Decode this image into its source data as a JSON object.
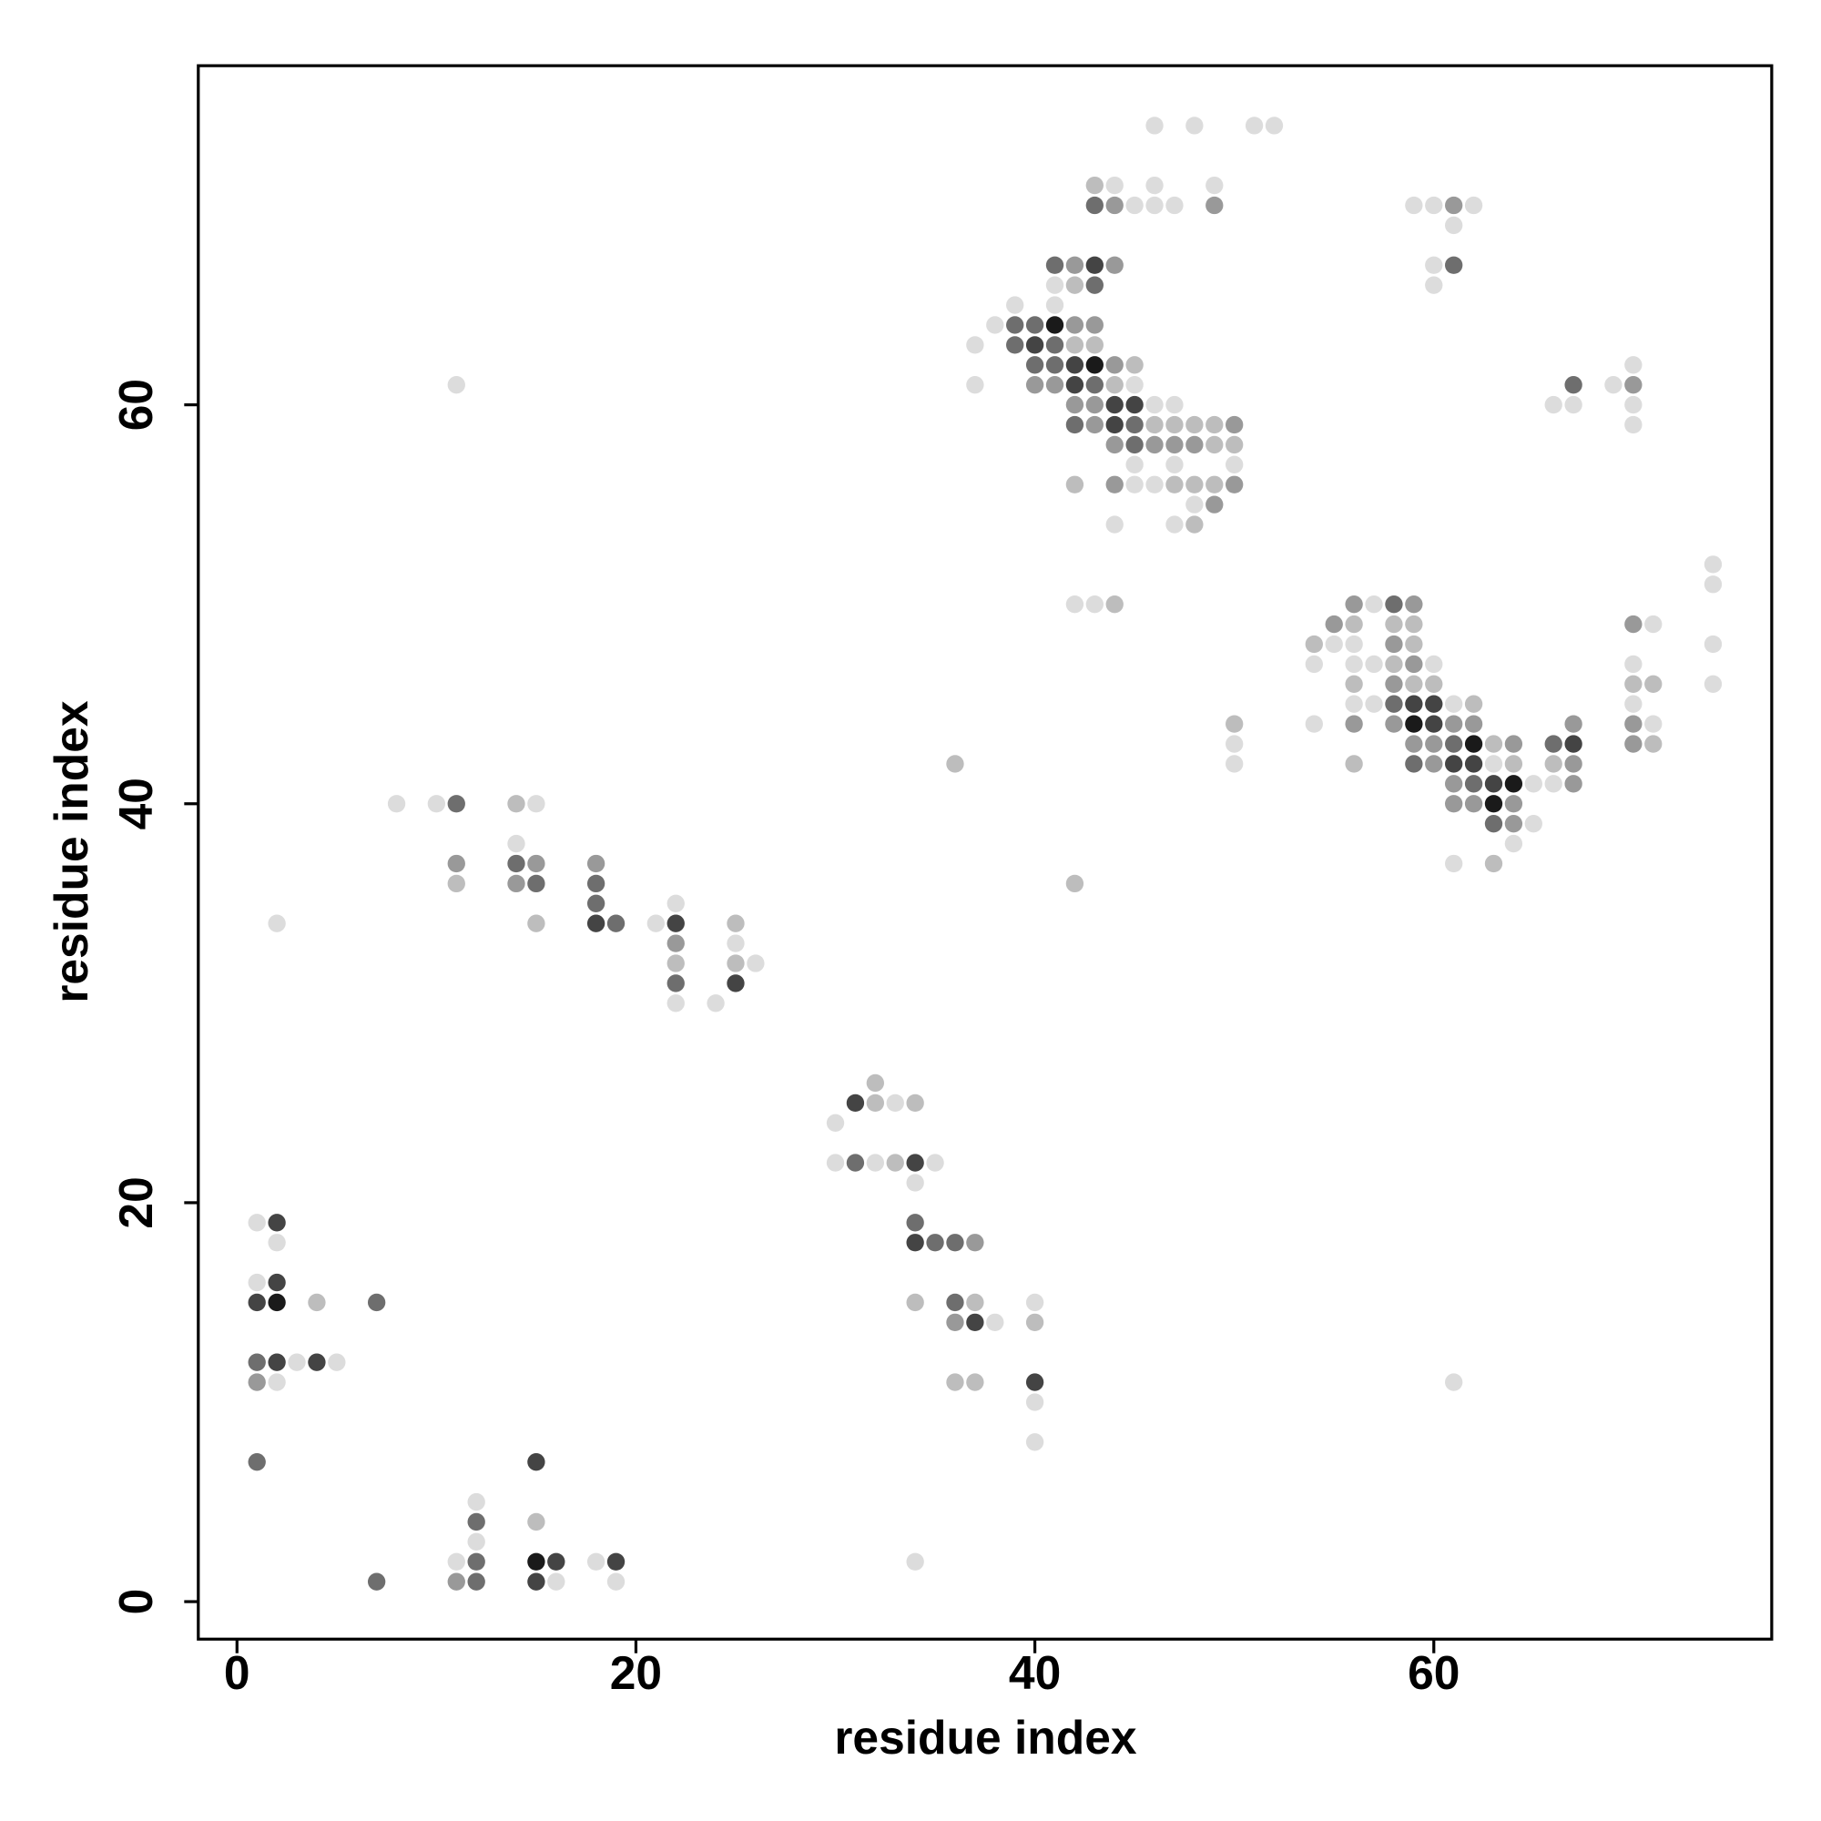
{
  "chart_data": {
    "type": "scatter",
    "xlabel": "residue index",
    "ylabel": "residue index",
    "xlim": [
      -1.94,
      76.94
    ],
    "ylim": [
      -1.88,
      77
    ],
    "xticks": [
      0,
      20,
      40,
      60
    ],
    "yticks": [
      0,
      20,
      40,
      60
    ],
    "series": [
      {
        "color": "#dcdcdc",
        "x": [
          46,
          48,
          51,
          52,
          44,
          46,
          49,
          45,
          46,
          47,
          59,
          60,
          62,
          61,
          60,
          41,
          60,
          41,
          39,
          38,
          37,
          37,
          45,
          11,
          69,
          46,
          47,
          66,
          67,
          70,
          70,
          70,
          45,
          47,
          50,
          45,
          46,
          48,
          44,
          47,
          42,
          43,
          74,
          74,
          57,
          71,
          55,
          56,
          74,
          54,
          56,
          57,
          60,
          70,
          74,
          56,
          57,
          61,
          70,
          54,
          71,
          50,
          50,
          63,
          65,
          66,
          8,
          10,
          15,
          65,
          14,
          64,
          61,
          22,
          2,
          21,
          25,
          26,
          22,
          24,
          33,
          30,
          30,
          32,
          35,
          34,
          1,
          2,
          1,
          40,
          38,
          3,
          5,
          2,
          40,
          40,
          12,
          12,
          11,
          18,
          34,
          16,
          19,
          61
        ],
        "y": [
          74,
          74,
          74,
          74,
          71,
          71,
          71,
          70,
          70,
          70,
          70,
          70,
          70,
          69,
          67,
          66,
          66,
          65,
          65,
          64,
          63,
          61,
          61,
          61,
          61,
          60,
          60,
          60,
          60,
          60,
          62,
          59,
          57,
          57,
          57,
          56,
          56,
          55,
          54,
          54,
          50,
          50,
          52,
          51,
          50,
          49,
          48,
          48,
          48,
          47,
          47,
          47,
          47,
          47,
          46,
          45,
          45,
          45,
          45,
          44,
          44,
          43,
          42,
          42,
          41,
          41,
          40,
          40,
          40,
          39,
          38,
          38,
          37,
          35,
          34,
          34,
          33,
          32,
          30,
          30,
          25,
          24,
          22,
          22,
          22,
          21,
          19,
          18,
          16,
          15,
          14,
          12,
          12,
          11,
          10,
          8,
          5,
          3,
          2,
          2,
          2,
          1,
          1,
          11
        ]
      },
      {
        "color": "#bdbdbd",
        "x": [
          43,
          42,
          42,
          43,
          45,
          44,
          46,
          47,
          48,
          49,
          49,
          50,
          42,
          47,
          48,
          49,
          48,
          44,
          56,
          58,
          59,
          54,
          59,
          58,
          56,
          59,
          60,
          70,
          71,
          62,
          50,
          63,
          71,
          36,
          56,
          64,
          66,
          14,
          63,
          11,
          42,
          15,
          25,
          22,
          25,
          32,
          32,
          34,
          33,
          4,
          34,
          37,
          40,
          36,
          37,
          15
        ],
        "y": [
          71,
          66,
          63,
          63,
          62,
          61,
          59,
          59,
          59,
          59,
          58,
          58,
          56,
          56,
          56,
          56,
          54,
          50,
          49,
          49,
          49,
          48,
          48,
          47,
          46,
          46,
          46,
          46,
          46,
          45,
          44,
          43,
          43,
          42,
          42,
          42,
          42,
          40,
          37,
          36,
          36,
          34,
          34,
          32,
          32,
          26,
          25,
          25,
          22,
          15,
          15,
          15,
          14,
          11,
          11,
          4
        ]
      },
      {
        "color": "#999999",
        "x": [
          44,
          49,
          61,
          42,
          44,
          42,
          43,
          44,
          40,
          41,
          42,
          43,
          43,
          50,
          44,
          46,
          47,
          48,
          44,
          50,
          49,
          56,
          59,
          55,
          70,
          58,
          59,
          58,
          56,
          58,
          61,
          62,
          67,
          70,
          59,
          60,
          64,
          70,
          60,
          67,
          61,
          67,
          61,
          62,
          64,
          64,
          11,
          15,
          18,
          14,
          22,
          37,
          36,
          1,
          11,
          70
        ],
        "y": [
          70,
          70,
          70,
          67,
          67,
          64,
          64,
          62,
          61,
          61,
          60,
          60,
          59,
          59,
          58,
          58,
          58,
          58,
          56,
          56,
          55,
          50,
          50,
          49,
          49,
          48,
          47,
          46,
          44,
          44,
          44,
          44,
          44,
          44,
          43,
          43,
          43,
          43,
          42,
          42,
          41,
          41,
          40,
          40,
          40,
          39,
          37,
          37,
          37,
          36,
          33,
          18,
          14,
          11,
          1,
          61
        ]
      },
      {
        "color": "#6e6e6e",
        "x": [
          43,
          41,
          61,
          43,
          39,
          40,
          39,
          41,
          40,
          41,
          43,
          67,
          42,
          45,
          45,
          58,
          58,
          59,
          61,
          66,
          62,
          63,
          11,
          14,
          15,
          18,
          18,
          19,
          22,
          31,
          34,
          35,
          36,
          7,
          36,
          1,
          1,
          12,
          12,
          7,
          12
        ],
        "y": [
          70,
          67,
          67,
          66,
          64,
          64,
          63,
          63,
          62,
          62,
          61,
          61,
          59,
          59,
          58,
          50,
          45,
          42,
          43,
          43,
          41,
          39,
          40,
          37,
          36,
          36,
          35,
          34,
          31,
          22,
          19,
          18,
          18,
          15,
          15,
          12,
          7,
          4,
          2,
          1,
          1
        ]
      },
      {
        "color": "#444444",
        "x": [
          43,
          40,
          42,
          42,
          44,
          45,
          44,
          59,
          60,
          60,
          61,
          62,
          67,
          63,
          18,
          22,
          25,
          31,
          34,
          2,
          34,
          2,
          1,
          37,
          2,
          4,
          40,
          15,
          16,
          19,
          15
        ],
        "y": [
          67,
          63,
          62,
          61,
          60,
          60,
          59,
          45,
          45,
          44,
          42,
          42,
          43,
          41,
          34,
          34,
          31,
          25,
          22,
          19,
          18,
          16,
          15,
          14,
          12,
          12,
          11,
          7,
          2,
          2,
          1
        ]
      },
      {
        "color": "#1a1a1a",
        "x": [
          41,
          43,
          59,
          62,
          64,
          63,
          2,
          15
        ],
        "y": [
          64,
          62,
          44,
          43,
          41,
          40,
          15,
          2
        ]
      }
    ]
  }
}
